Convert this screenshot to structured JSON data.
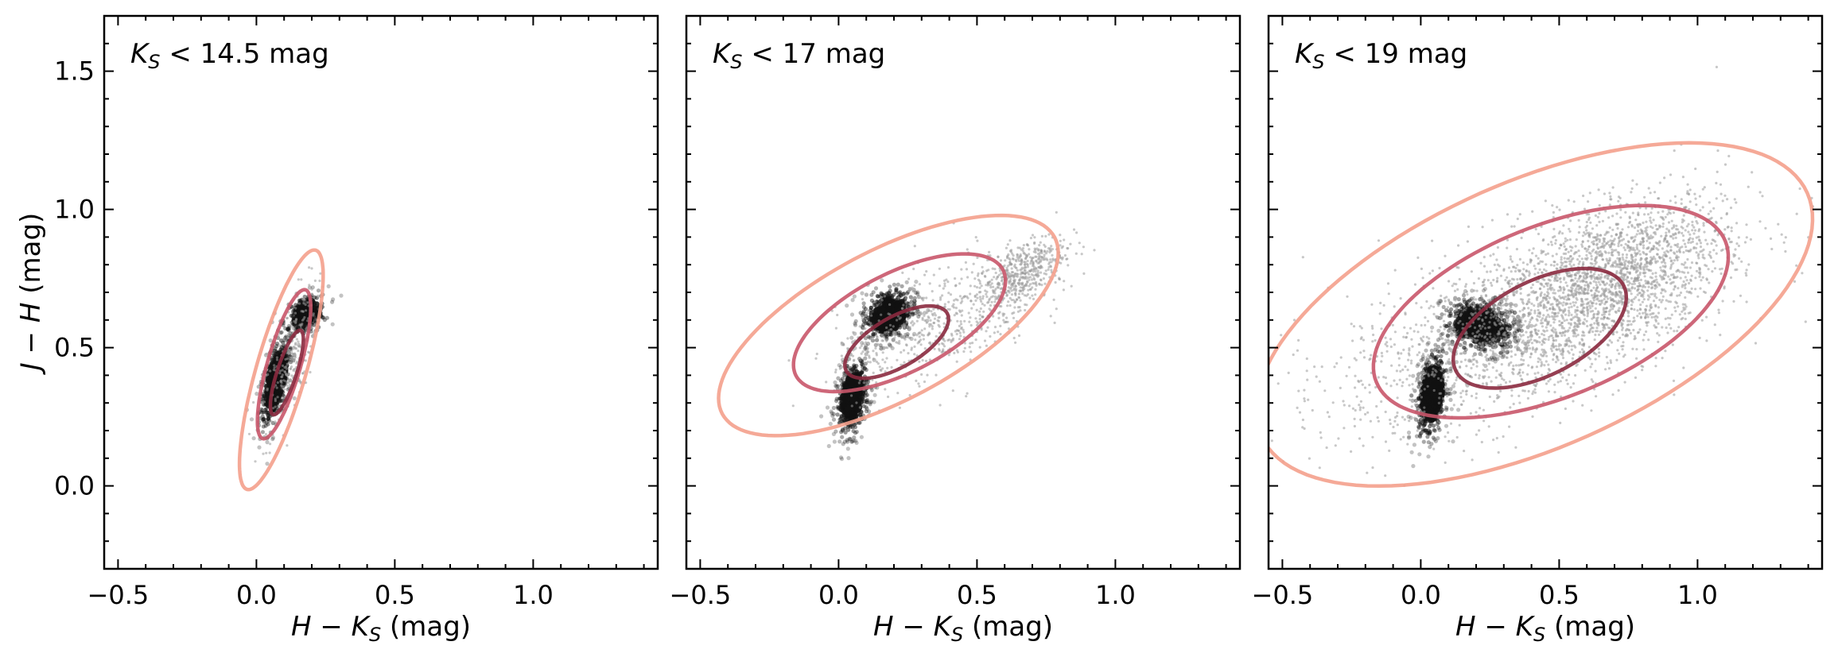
{
  "figure": {
    "ylabel": "J − H (mag)",
    "colors": {
      "outer": "#f4a08c",
      "middle": "#c9566a",
      "inner": "#8b2a3f",
      "scatter": "#9a9a9a",
      "dense": "#111111"
    }
  },
  "chart_data": [
    {
      "type": "scatter",
      "title": "K_S < 14.5 mag",
      "title_parts": {
        "sym": "K",
        "sub": "S",
        "rest": "< 14.5 mag"
      },
      "xlabel": "H − K_S (mag)",
      "xlabel_parts": {
        "a": "H − K",
        "sub": "S",
        "rest": "(mag)"
      },
      "xlim": [
        -0.55,
        1.45
      ],
      "ylim": [
        -0.3,
        1.7
      ],
      "xticks": [
        -0.5,
        0.0,
        0.5,
        1.0
      ],
      "xtick_labels": [
        "−0.5",
        "0.0",
        "0.5",
        "1.0"
      ],
      "yticks": [
        0.0,
        0.5,
        1.0,
        1.5
      ],
      "ytick_labels": [
        "0.0",
        "0.5",
        "1.0",
        "1.5"
      ],
      "show_ylabels": true,
      "clusters": [
        {
          "cx": 0.07,
          "cy": 0.38,
          "sx": 0.03,
          "sy": 0.09,
          "rho": 0.6,
          "n": 420,
          "dense": true
        },
        {
          "cx": 0.18,
          "cy": 0.62,
          "sx": 0.04,
          "sy": 0.04,
          "rho": 0.3,
          "n": 180,
          "dense": true
        },
        {
          "cx": 0.12,
          "cy": 0.45,
          "sx": 0.05,
          "sy": 0.14,
          "rho": 0.7,
          "n": 260,
          "dense": false
        }
      ],
      "ellipses": [
        {
          "level": "outer",
          "cx": 0.09,
          "cy": 0.42,
          "rx": 0.45,
          "ry": 0.09,
          "angle_deg": 74
        },
        {
          "level": "middle",
          "cx": 0.1,
          "cy": 0.44,
          "rx": 0.28,
          "ry": 0.06,
          "angle_deg": 74
        },
        {
          "level": "inner",
          "cx": 0.11,
          "cy": 0.41,
          "rx": 0.16,
          "ry": 0.035,
          "angle_deg": 72
        }
      ]
    },
    {
      "type": "scatter",
      "title": "K_S < 17 mag",
      "title_parts": {
        "sym": "K",
        "sub": "S",
        "rest": "< 17 mag"
      },
      "xlabel": "H − K_S (mag)",
      "xlabel_parts": {
        "a": "H − K",
        "sub": "S",
        "rest": "(mag)"
      },
      "xlim": [
        -0.55,
        1.45
      ],
      "ylim": [
        -0.3,
        1.7
      ],
      "xticks": [
        -0.5,
        0.0,
        0.5,
        1.0
      ],
      "xtick_labels": [
        "−0.5",
        "0.0",
        "0.5",
        "1.0"
      ],
      "yticks": [
        0.0,
        0.5,
        1.0,
        1.5
      ],
      "show_ylabels": false,
      "clusters": [
        {
          "cx": 0.05,
          "cy": 0.32,
          "sx": 0.03,
          "sy": 0.07,
          "rho": 0.3,
          "n": 500,
          "dense": true
        },
        {
          "cx": 0.18,
          "cy": 0.62,
          "sx": 0.05,
          "sy": 0.05,
          "rho": 0.2,
          "n": 420,
          "dense": true
        },
        {
          "cx": 0.66,
          "cy": 0.77,
          "sx": 0.08,
          "sy": 0.07,
          "rho": 0.6,
          "n": 500,
          "dense": false
        },
        {
          "cx": 0.35,
          "cy": 0.58,
          "sx": 0.18,
          "sy": 0.12,
          "rho": 0.6,
          "n": 600,
          "dense": false
        }
      ],
      "ellipses": [
        {
          "level": "outer",
          "cx": 0.18,
          "cy": 0.58,
          "rx": 0.68,
          "ry": 0.27,
          "angle_deg": 28
        },
        {
          "level": "middle",
          "cx": 0.22,
          "cy": 0.59,
          "rx": 0.42,
          "ry": 0.18,
          "angle_deg": 27
        },
        {
          "level": "inner",
          "cx": 0.21,
          "cy": 0.52,
          "rx": 0.21,
          "ry": 0.09,
          "angle_deg": 30
        }
      ]
    },
    {
      "type": "scatter",
      "title": "K_S < 19 mag",
      "title_parts": {
        "sym": "K",
        "sub": "S",
        "rest": "< 19 mag"
      },
      "xlabel": "H − K_S (mag)",
      "xlabel_parts": {
        "a": "H − K",
        "sub": "S",
        "rest": "(mag)"
      },
      "xlim": [
        -0.55,
        1.45
      ],
      "ylim": [
        -0.3,
        1.7
      ],
      "xticks": [
        -0.5,
        0.0,
        0.5,
        1.0
      ],
      "xtick_labels": [
        "−0.5",
        "0.0",
        "0.5",
        "1.0"
      ],
      "yticks": [
        0.0,
        0.5,
        1.0,
        1.5
      ],
      "show_ylabels": false,
      "clusters": [
        {
          "cx": 0.04,
          "cy": 0.33,
          "sx": 0.03,
          "sy": 0.08,
          "rho": 0.3,
          "n": 500,
          "dense": true
        },
        {
          "cx": 0.22,
          "cy": 0.58,
          "sx": 0.07,
          "sy": 0.05,
          "rho": -0.2,
          "n": 500,
          "dense": true
        },
        {
          "cx": 0.7,
          "cy": 0.75,
          "sx": 0.2,
          "sy": 0.14,
          "rho": 0.5,
          "n": 1500,
          "dense": false
        },
        {
          "cx": 0.4,
          "cy": 0.6,
          "sx": 0.35,
          "sy": 0.2,
          "rho": 0.6,
          "n": 1800,
          "dense": false
        }
      ],
      "ellipses": [
        {
          "level": "outer",
          "cx": 0.41,
          "cy": 0.62,
          "rx": 1.08,
          "ry": 0.48,
          "angle_deg": 24
        },
        {
          "level": "middle",
          "cx": 0.47,
          "cy": 0.63,
          "rx": 0.68,
          "ry": 0.31,
          "angle_deg": 22
        },
        {
          "level": "inner",
          "cx": 0.43,
          "cy": 0.57,
          "rx": 0.34,
          "ry": 0.17,
          "angle_deg": 27
        }
      ]
    }
  ]
}
